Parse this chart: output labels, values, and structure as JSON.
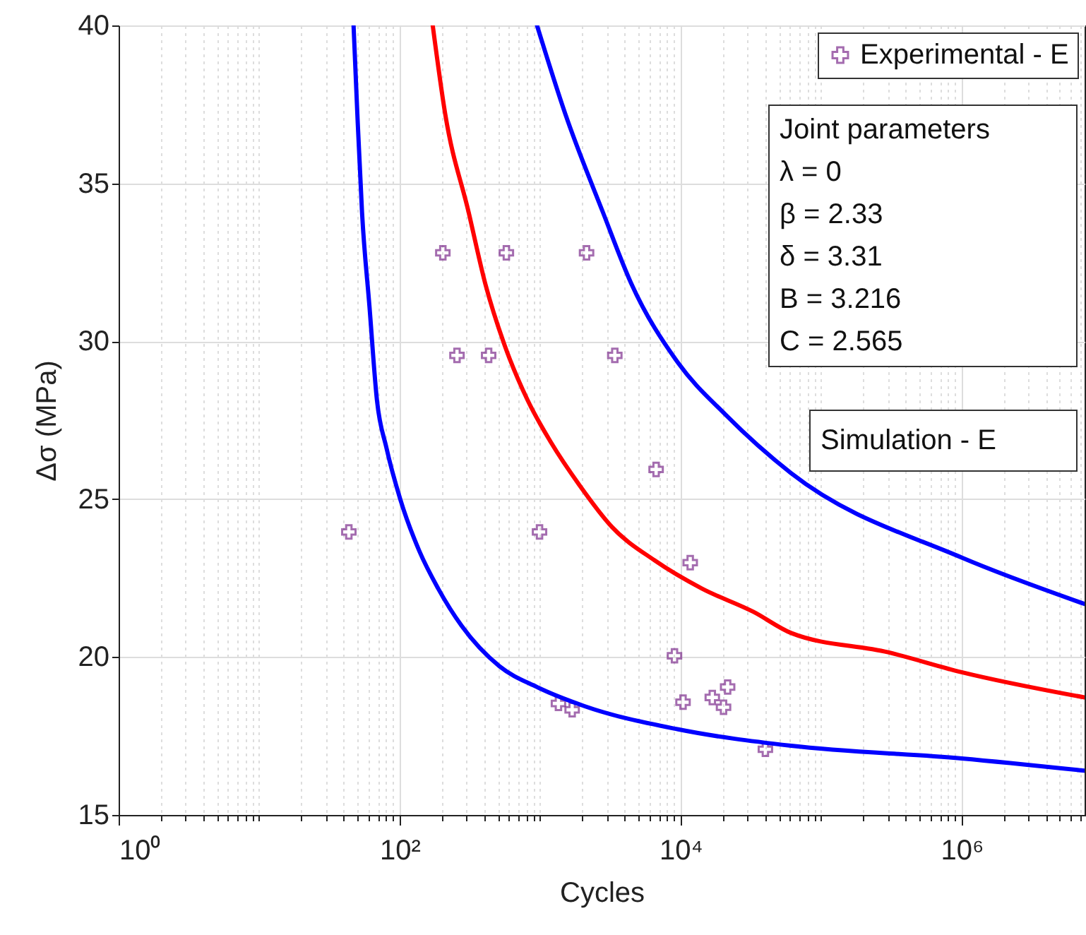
{
  "chart_data": {
    "type": "scatter",
    "xlabel": "Cycles",
    "ylabel": "Δσ (MPa)",
    "log": "x",
    "grid": true,
    "legend": "top right",
    "xlim": [
      1,
      7500000
    ],
    "ylim": [
      15,
      40
    ],
    "xticks": [
      {
        "value": 1,
        "label": "10⁰"
      },
      {
        "value": 2,
        "label": null
      },
      {
        "value": 3,
        "label": null
      },
      {
        "value": 4,
        "label": null
      },
      {
        "value": 5,
        "label": null
      },
      {
        "value": 6,
        "label": null
      },
      {
        "value": 7,
        "label": null
      },
      {
        "value": 8,
        "label": null
      },
      {
        "value": 9,
        "label": null
      },
      {
        "value": 10,
        "label": null
      },
      {
        "value": 20,
        "label": null
      },
      {
        "value": 30,
        "label": null
      },
      {
        "value": 40,
        "label": null
      },
      {
        "value": 50,
        "label": null
      },
      {
        "value": 60,
        "label": null
      },
      {
        "value": 70,
        "label": null
      },
      {
        "value": 80,
        "label": null
      },
      {
        "value": 90,
        "label": null
      },
      {
        "value": 100,
        "label": "10²"
      },
      {
        "value": 200,
        "label": null
      },
      {
        "value": 300,
        "label": null
      },
      {
        "value": 400,
        "label": null
      },
      {
        "value": 500,
        "label": null
      },
      {
        "value": 600,
        "label": null
      },
      {
        "value": 700,
        "label": null
      },
      {
        "value": 800,
        "label": null
      },
      {
        "value": 900,
        "label": null
      },
      {
        "value": 1000,
        "label": null
      },
      {
        "value": 2000,
        "label": null
      },
      {
        "value": 3000,
        "label": null
      },
      {
        "value": 4000,
        "label": null
      },
      {
        "value": 5000,
        "label": null
      },
      {
        "value": 6000,
        "label": null
      },
      {
        "value": 7000,
        "label": null
      },
      {
        "value": 8000,
        "label": null
      },
      {
        "value": 9000,
        "label": null
      },
      {
        "value": 10000,
        "label": "10⁴"
      },
      {
        "value": 20000,
        "label": null
      },
      {
        "value": 30000,
        "label": null
      },
      {
        "value": 40000,
        "label": null
      },
      {
        "value": 50000,
        "label": null
      },
      {
        "value": 60000,
        "label": null
      },
      {
        "value": 70000,
        "label": null
      },
      {
        "value": 80000,
        "label": null
      },
      {
        "value": 90000,
        "label": null
      },
      {
        "value": 100000,
        "label": null
      },
      {
        "value": 200000,
        "label": null
      },
      {
        "value": 300000,
        "label": null
      },
      {
        "value": 400000,
        "label": null
      },
      {
        "value": 500000,
        "label": null
      },
      {
        "value": 600000,
        "label": null
      },
      {
        "value": 700000,
        "label": null
      },
      {
        "value": 800000,
        "label": null
      },
      {
        "value": 900000,
        "label": null
      },
      {
        "value": 1000000,
        "label": "10⁶"
      },
      {
        "value": 2000000,
        "label": null
      },
      {
        "value": 3000000,
        "label": null
      },
      {
        "value": 4000000,
        "label": null
      },
      {
        "value": 5000000,
        "label": null
      },
      {
        "value": 6000000,
        "label": null
      },
      {
        "value": 7000000,
        "label": null
      }
    ],
    "yticks": [
      15,
      20,
      25,
      30,
      35,
      40
    ],
    "annotations": [
      "Joint parameters",
      "λ = 0",
      "β = 2.33",
      "δ = 3.31",
      "B = 3.216",
      "C = 2.565",
      "Simulation - E"
    ],
    "series": [
      {
        "name": "Experimental - E",
        "marker": "cross",
        "color": "#7e2f8e",
        "x": [
          203,
          575,
          2140,
          256,
          430,
          3400,
          6690,
          43.5,
          990,
          11700,
          9040,
          1350,
          1690,
          10400,
          16800,
          21600,
          20200,
          40100
        ],
        "values": [
          32.8,
          32.8,
          32.8,
          29.55,
          29.55,
          29.55,
          25.94,
          23.96,
          23.96,
          22.99,
          20.04,
          18.53,
          18.33,
          18.57,
          18.72,
          19.05,
          18.41,
          17.08
        ]
      },
      {
        "type": "line",
        "marker": "none",
        "color": "#0000ff",
        "x": [
          47,
          50,
          54,
          61,
          69,
          80.5,
          101,
          138,
          188,
          277,
          513,
          950,
          2055,
          9610,
          61200,
          1000000,
          7500000
        ],
        "values": [
          40,
          37.2,
          34.08,
          31.1,
          28.12,
          26.63,
          25,
          23.36,
          22.17,
          20.98,
          19.71,
          19.05,
          18.45,
          17.71,
          17.19,
          16.79,
          16.4
        ]
      },
      {
        "type": "line",
        "marker": "none",
        "color": "#ff0000",
        "x": [
          172,
          211,
          310,
          406,
          555,
          815,
          1197,
          1900,
          3260,
          6530,
          14150,
          33000,
          61200,
          300000,
          1000000,
          7500000
        ],
        "values": [
          40,
          37.2,
          34.08,
          31.84,
          29.91,
          28.13,
          26.79,
          25.45,
          24.11,
          23.06,
          22.17,
          21.43,
          20.76,
          20.15,
          19.52,
          18.72
        ]
      },
      {
        "type": "line",
        "marker": "none",
        "color": "#0000ff",
        "x": [
          950,
          1510,
          2800,
          4440,
          9610,
          20800,
          61200,
          1000000,
          7500000
        ],
        "values": [
          40,
          37.2,
          34.08,
          31.84,
          29.31,
          27.68,
          25.82,
          23.15,
          21.68
        ]
      }
    ]
  }
}
